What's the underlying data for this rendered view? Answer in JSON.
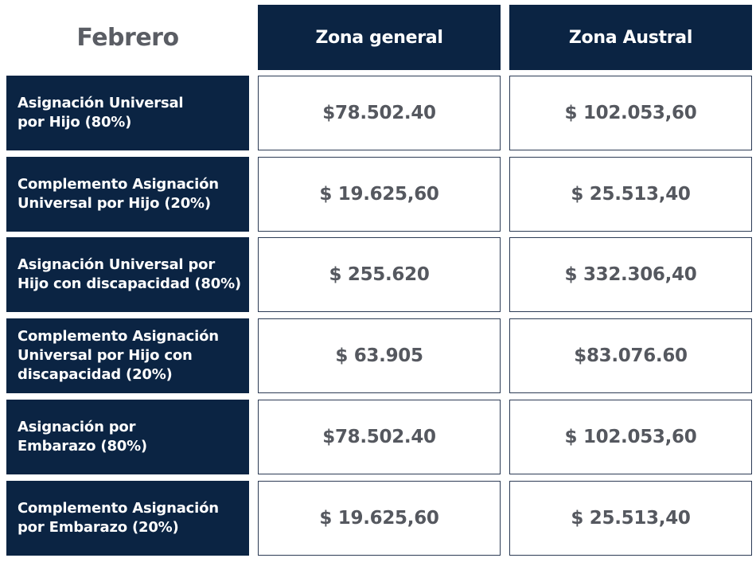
{
  "header": {
    "month": "Febrero",
    "col_general": "Zona general",
    "col_austral": "Zona Austral"
  },
  "rows": [
    {
      "label": "Asignación Universal\npor Hijo (80%)",
      "general": "$78.502.40",
      "austral": "$ 102.053,60"
    },
    {
      "label": "Complemento Asignación\nUniversal por Hijo (20%)",
      "general": "$ 19.625,60",
      "austral": "$ 25.513,40"
    },
    {
      "label": "Asignación Universal por\nHijo con discapacidad (80%)",
      "general": "$ 255.620",
      "austral": "$ 332.306,40"
    },
    {
      "label": "Complemento Asignación\nUniversal por Hijo con\ndiscapacidad (20%)",
      "general": "$ 63.905",
      "austral": "$83.076.60"
    },
    {
      "label": "Asignación por\nEmbarazo (80%)",
      "general": "$78.502.40",
      "austral": "$ 102.053,60"
    },
    {
      "label": "Complemento Asignación\npor Embarazo (20%)",
      "general": "$ 19.625,60",
      "austral": "$ 25.513,40"
    }
  ]
}
